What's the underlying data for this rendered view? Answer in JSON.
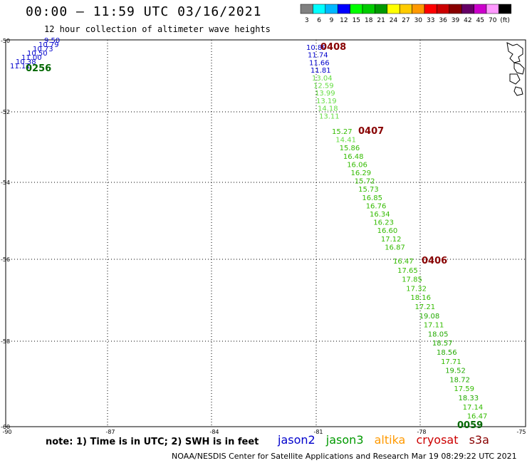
{
  "header": {
    "title": "00:00 — 11:59 UTC 03/16/2021",
    "subtitle": "12 hour collection of altimeter wave heights"
  },
  "colorbar": {
    "labels": [
      "3",
      "6",
      "9",
      "12",
      "15",
      "18",
      "21",
      "24",
      "27",
      "30",
      "33",
      "36",
      "39",
      "42",
      "45",
      "70",
      "(ft)"
    ],
    "colors": [
      "#808080",
      "#00ffff",
      "#00b8ff",
      "#0000ff",
      "#00ff00",
      "#00cc00",
      "#009900",
      "#ffff00",
      "#ffcc00",
      "#ff9900",
      "#ff0000",
      "#cc0000",
      "#880000",
      "#660066",
      "#cc00cc",
      "#ff99ff",
      "#000000"
    ]
  },
  "axes": {
    "lat_labels": [
      "-50",
      "-52",
      "-54",
      "-56",
      "-58",
      "-60"
    ],
    "lon_labels": [
      "-90",
      "-87",
      "-84",
      "-81",
      "-78",
      "-75"
    ]
  },
  "passes": [
    {
      "time": "0256",
      "time_color": "#006600",
      "readings": [
        {
          "value": "9.50",
          "color": "#0000cc"
        },
        {
          "value": "10.79",
          "color": "#0000cc"
        },
        {
          "value": "10.73",
          "color": "#0000cc"
        },
        {
          "value": "10.50",
          "color": "#0000cc"
        },
        {
          "value": "11.00",
          "color": "#0000cc"
        },
        {
          "value": "10.38",
          "color": "#0000cc"
        },
        {
          "value": "11.11",
          "color": "#0000cc"
        }
      ]
    },
    {
      "time": "0408",
      "time_color": "#880000",
      "readings": [
        {
          "value": "10.89",
          "color": "#0000cc"
        },
        {
          "value": "11.74",
          "color": "#0000cc"
        },
        {
          "value": "11.66",
          "color": "#0000cc"
        },
        {
          "value": "11.81",
          "color": "#0000cc"
        },
        {
          "value": "13.04",
          "color": "#66dd44"
        },
        {
          "value": "12.59",
          "color": "#66dd44"
        },
        {
          "value": "13.99",
          "color": "#66dd44"
        },
        {
          "value": "13.19",
          "color": "#66dd44"
        },
        {
          "value": "14.18",
          "color": "#66dd44"
        },
        {
          "value": "13.11",
          "color": "#66dd44"
        }
      ]
    },
    {
      "time": "0407",
      "time_color": "#880000",
      "readings": [
        {
          "value": "15.27",
          "color": "#33bb00"
        },
        {
          "value": "14.41",
          "color": "#66dd44"
        },
        {
          "value": "15.86",
          "color": "#33bb00"
        },
        {
          "value": "16.48",
          "color": "#33bb00"
        },
        {
          "value": "16.06",
          "color": "#33bb00"
        },
        {
          "value": "16.29",
          "color": "#33bb00"
        },
        {
          "value": "15.72",
          "color": "#33bb00"
        },
        {
          "value": "15.73",
          "color": "#33bb00"
        },
        {
          "value": "16.85",
          "color": "#33bb00"
        },
        {
          "value": "16.76",
          "color": "#33bb00"
        },
        {
          "value": "16.34",
          "color": "#33bb00"
        },
        {
          "value": "16.23",
          "color": "#33bb00"
        },
        {
          "value": "16.60",
          "color": "#33bb00"
        },
        {
          "value": "17.12",
          "color": "#33bb00"
        },
        {
          "value": "16.87",
          "color": "#33bb00"
        }
      ]
    },
    {
      "time": "0406",
      "time_color": "#880000",
      "readings": [
        {
          "value": "16.47",
          "color": "#33bb00"
        },
        {
          "value": "17.65",
          "color": "#33bb00"
        },
        {
          "value": "17.85",
          "color": "#33bb00"
        },
        {
          "value": "17.32",
          "color": "#33bb00"
        },
        {
          "value": "18.16",
          "color": "#33bb00"
        },
        {
          "value": "17.21",
          "color": "#33bb00"
        },
        {
          "value": "19.08",
          "color": "#22aa00"
        },
        {
          "value": "17.11",
          "color": "#33bb00"
        },
        {
          "value": "18.05",
          "color": "#22aa00"
        },
        {
          "value": "18.57",
          "color": "#22aa00"
        },
        {
          "value": "18.56",
          "color": "#22aa00"
        },
        {
          "value": "17.71",
          "color": "#33bb00"
        },
        {
          "value": "19.52",
          "color": "#22aa00"
        },
        {
          "value": "18.72",
          "color": "#22aa00"
        },
        {
          "value": "17.59",
          "color": "#33bb00"
        },
        {
          "value": "18.33",
          "color": "#22aa00"
        },
        {
          "value": "17.14",
          "color": "#33bb00"
        },
        {
          "value": "16.47",
          "color": "#33bb00"
        }
      ]
    },
    {
      "time": "0059",
      "time_color": "#006600",
      "readings": []
    }
  ],
  "footer": {
    "note": "note:  1) Time is in UTC;  2) SWH is in feet",
    "satellites": [
      {
        "name": "jason2",
        "color": "#0000cc"
      },
      {
        "name": "jason3",
        "color": "#009900"
      },
      {
        "name": "altika",
        "color": "#ff9900"
      },
      {
        "name": "cryosat",
        "color": "#cc0000"
      },
      {
        "name": "s3a",
        "color": "#880000"
      }
    ],
    "credit": "NOAA/NESDIS Center for Satellite Applications and Research    Mar 19 08:29:22 UTC 2021"
  }
}
